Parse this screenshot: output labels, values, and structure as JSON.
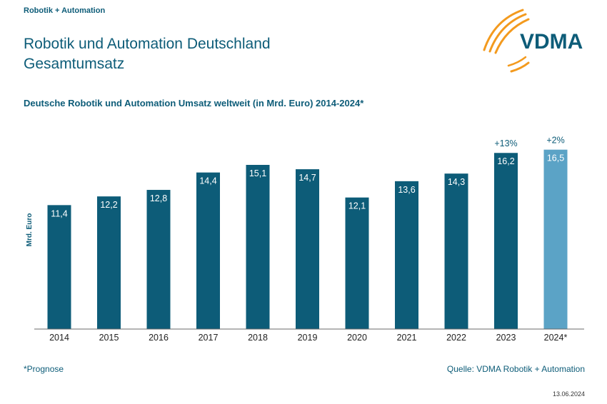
{
  "header": {
    "top_label": "Robotik + Automation",
    "title_line1": "Robotik und Automation Deutschland",
    "title_line2": "Gesamtumsatz",
    "logo_text": "VDMA"
  },
  "footer": {
    "footnote": "*Prognose",
    "source": "Quelle: VDMA Robotik + Automation",
    "date": "13.06.2024"
  },
  "colors": {
    "bar": "#0d5c78",
    "bar_forecast": "#5ba3c6",
    "text": "#0d5c78",
    "logo_orange": "#f39a1e",
    "logo_blue": "#0d5c78"
  },
  "chart_data": {
    "type": "bar",
    "title": "Deutsche Robotik und Automation Umsatz weltweit (in Mrd. Euro) 2014-2024*",
    "xlabel": "",
    "ylabel": "Mrd. Euro",
    "ylim": [
      0,
      18
    ],
    "grid": false,
    "categories": [
      "2014",
      "2015",
      "2016",
      "2017",
      "2018",
      "2019",
      "2020",
      "2021",
      "2022",
      "2023",
      "2024*"
    ],
    "values": [
      11.4,
      12.2,
      12.8,
      14.4,
      15.1,
      14.7,
      12.1,
      13.6,
      14.3,
      16.2,
      16.5
    ],
    "value_labels": [
      "11,4",
      "12,2",
      "12,8",
      "14,4",
      "15,1",
      "14,7",
      "12,1",
      "13,6",
      "14,3",
      "16,2",
      "16,5"
    ],
    "forecast_index": 10,
    "annotations": [
      {
        "category": "2023",
        "text": "+13%"
      },
      {
        "category": "2024*",
        "text": "+2%"
      }
    ]
  }
}
